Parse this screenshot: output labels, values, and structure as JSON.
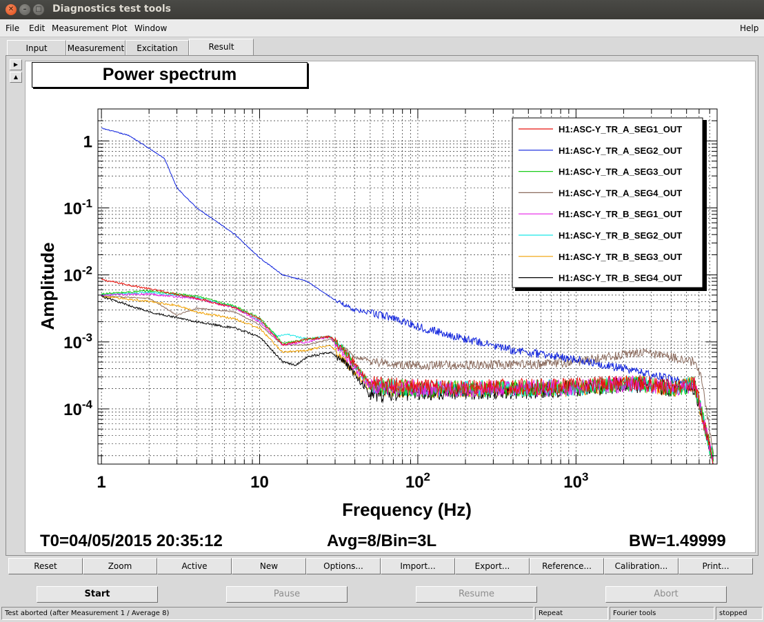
{
  "window": {
    "title": "Diagnostics test tools"
  },
  "menu": {
    "items": [
      {
        "label": "File"
      },
      {
        "label": "Edit"
      },
      {
        "label": "Measurement"
      },
      {
        "label": "Plot"
      },
      {
        "label": "Window"
      }
    ],
    "help": "Help"
  },
  "tabs": [
    {
      "label": "Input"
    },
    {
      "label": "Measurement"
    },
    {
      "label": "Excitation"
    },
    {
      "label": "Result",
      "active": true
    }
  ],
  "plot": {
    "title": "Power spectrum",
    "t0": "T0=04/05/2015 20:35:12",
    "avg": "Avg=8/Bin=3L",
    "bw": "BW=1.49999"
  },
  "chart_data": {
    "type": "line",
    "title": "Power spectrum",
    "xlabel": "Frequency (Hz)",
    "ylabel": "Amplitude",
    "xscale": "log",
    "yscale": "log",
    "xlim": [
      0.95,
      7800
    ],
    "ylim": [
      1.5e-05,
      3
    ],
    "grid": true,
    "legend_position": "top-right",
    "x_ticks": [
      {
        "value": 1,
        "base": "1",
        "exp": ""
      },
      {
        "value": 10,
        "base": "10",
        "exp": ""
      },
      {
        "value": 100,
        "base": "10",
        "exp": "2"
      },
      {
        "value": 1000,
        "base": "10",
        "exp": "3"
      }
    ],
    "y_ticks": [
      {
        "value": 1,
        "base": "1",
        "exp": ""
      },
      {
        "value": 0.1,
        "base": "10",
        "exp": "-1"
      },
      {
        "value": 0.01,
        "base": "10",
        "exp": "-2"
      },
      {
        "value": 0.001,
        "base": "10",
        "exp": "-3"
      },
      {
        "value": 0.0001,
        "base": "10",
        "exp": "-4"
      }
    ],
    "series": [
      {
        "name": "H1:ASC-Y_TR_A_SEG1_OUT",
        "color": "#e8120c",
        "noise": 0.25,
        "points": [
          [
            1,
            0.0085
          ],
          [
            2,
            0.0062
          ],
          [
            4,
            0.0045
          ],
          [
            7,
            0.0032
          ],
          [
            10,
            0.0022
          ],
          [
            14,
            0.0009
          ],
          [
            20,
            0.0011
          ],
          [
            28,
            0.0012
          ],
          [
            35,
            0.0007
          ],
          [
            50,
            0.00024
          ],
          [
            100,
            0.00021
          ],
          [
            300,
            0.00021
          ],
          [
            1000,
            0.00022
          ],
          [
            2500,
            0.00025
          ],
          [
            4000,
            0.00021
          ],
          [
            5600,
            0.00024
          ],
          [
            6200,
            9e-05
          ],
          [
            7400,
            1.6e-05
          ]
        ]
      },
      {
        "name": "H1:ASC-Y_TR_A_SEG2_OUT",
        "color": "#0a1edc",
        "noise": 0.12,
        "points": [
          [
            1,
            1.55
          ],
          [
            1.5,
            1.2
          ],
          [
            2.5,
            0.55
          ],
          [
            3,
            0.2
          ],
          [
            4,
            0.1
          ],
          [
            7,
            0.04
          ],
          [
            10,
            0.018
          ],
          [
            14,
            0.01
          ],
          [
            20,
            0.008
          ],
          [
            30,
            0.0042
          ],
          [
            40,
            0.003
          ],
          [
            70,
            0.0023
          ],
          [
            100,
            0.0017
          ],
          [
            200,
            0.0011
          ],
          [
            400,
            0.00075
          ],
          [
            1000,
            0.00055
          ],
          [
            2000,
            0.0004
          ],
          [
            4000,
            0.00028
          ],
          [
            5600,
            0.00024
          ],
          [
            6200,
            9e-05
          ],
          [
            7400,
            1.6e-05
          ]
        ]
      },
      {
        "name": "H1:ASC-Y_TR_A_SEG3_OUT",
        "color": "#18cc18",
        "noise": 0.25,
        "points": [
          [
            1,
            0.0052
          ],
          [
            2,
            0.0058
          ],
          [
            4,
            0.0048
          ],
          [
            7,
            0.0034
          ],
          [
            10,
            0.0023
          ],
          [
            14,
            0.00095
          ],
          [
            20,
            0.0011
          ],
          [
            28,
            0.0012
          ],
          [
            35,
            0.0007
          ],
          [
            50,
            0.00022
          ],
          [
            100,
            0.0002
          ],
          [
            300,
            0.0002
          ],
          [
            1000,
            0.00021
          ],
          [
            2500,
            0.00024
          ],
          [
            4000,
            0.0002
          ],
          [
            5600,
            0.00023
          ],
          [
            6200,
            9e-05
          ],
          [
            7400,
            1.6e-05
          ]
        ]
      },
      {
        "name": "H1:ASC-Y_TR_A_SEG4_OUT",
        "color": "#8a6a5c",
        "noise": 0.14,
        "points": [
          [
            1,
            0.0048
          ],
          [
            2,
            0.0045
          ],
          [
            3,
            0.0025
          ],
          [
            4,
            0.0032
          ],
          [
            7,
            0.0028
          ],
          [
            10,
            0.0018
          ],
          [
            14,
            0.0009
          ],
          [
            20,
            0.0009
          ],
          [
            28,
            0.0011
          ],
          [
            40,
            0.0006
          ],
          [
            70,
            0.00045
          ],
          [
            100,
            0.00045
          ],
          [
            200,
            0.00045
          ],
          [
            500,
            0.00046
          ],
          [
            1000,
            0.0005
          ],
          [
            2500,
            0.0007
          ],
          [
            4000,
            0.0006
          ],
          [
            5600,
            0.0005
          ],
          [
            6200,
            0.0003
          ],
          [
            7400,
            2e-05
          ]
        ]
      },
      {
        "name": "H1:ASC-Y_TR_B_SEG1_OUT",
        "color": "#e61ee6",
        "noise": 0.25,
        "points": [
          [
            1,
            0.005
          ],
          [
            2,
            0.0052
          ],
          [
            4,
            0.0044
          ],
          [
            7,
            0.0032
          ],
          [
            10,
            0.002
          ],
          [
            14,
            0.0009
          ],
          [
            20,
            0.001
          ],
          [
            28,
            0.0012
          ],
          [
            35,
            0.0006
          ],
          [
            50,
            0.00022
          ],
          [
            100,
            0.0002
          ],
          [
            300,
            0.0002
          ],
          [
            1000,
            0.00021
          ],
          [
            2500,
            0.00024
          ],
          [
            4000,
            0.0002
          ],
          [
            5600,
            0.00023
          ],
          [
            6200,
            9e-05
          ],
          [
            7400,
            1.6e-05
          ]
        ]
      },
      {
        "name": "H1:ASC-Y_TR_B_SEG2_OUT",
        "color": "#18e6e6",
        "noise": 0.25,
        "points": [
          [
            1,
            0.005
          ],
          [
            2,
            0.0055
          ],
          [
            4,
            0.0046
          ],
          [
            7,
            0.0033
          ],
          [
            10,
            0.0021
          ],
          [
            13,
            0.0012
          ],
          [
            15,
            0.0013
          ],
          [
            20,
            0.0011
          ],
          [
            28,
            0.0012
          ],
          [
            35,
            0.0007
          ],
          [
            50,
            0.00022
          ],
          [
            100,
            0.0002
          ],
          [
            300,
            0.0002
          ],
          [
            1000,
            0.00021
          ],
          [
            2500,
            0.00024
          ],
          [
            4000,
            0.0002
          ],
          [
            5600,
            0.00023
          ],
          [
            6200,
            9e-05
          ],
          [
            7400,
            1.6e-05
          ]
        ]
      },
      {
        "name": "H1:ASC-Y_TR_B_SEG3_OUT",
        "color": "#f0a000",
        "noise": 0.25,
        "points": [
          [
            1,
            0.0048
          ],
          [
            2,
            0.004
          ],
          [
            3,
            0.0035
          ],
          [
            4,
            0.0028
          ],
          [
            7,
            0.0022
          ],
          [
            10,
            0.0016
          ],
          [
            14,
            0.0007
          ],
          [
            20,
            0.00075
          ],
          [
            28,
            0.0009
          ],
          [
            35,
            0.0005
          ],
          [
            50,
            0.0002
          ],
          [
            100,
            0.00019
          ],
          [
            300,
            0.0002
          ],
          [
            1000,
            0.0002
          ],
          [
            2500,
            0.00024
          ],
          [
            4000,
            0.0002
          ],
          [
            5600,
            0.00023
          ],
          [
            6200,
            9e-05
          ],
          [
            7400,
            1.6e-05
          ]
        ]
      },
      {
        "name": "H1:ASC-Y_TR_B_SEG4_OUT",
        "color": "#000000",
        "noise": 0.25,
        "points": [
          [
            1,
            0.0048
          ],
          [
            2,
            0.0028
          ],
          [
            4,
            0.002
          ],
          [
            7,
            0.0016
          ],
          [
            10,
            0.0012
          ],
          [
            14,
            0.0005
          ],
          [
            17,
            0.00045
          ],
          [
            20,
            0.0006
          ],
          [
            28,
            0.0007
          ],
          [
            35,
            0.0005
          ],
          [
            50,
            0.00016
          ],
          [
            100,
            0.00018
          ],
          [
            300,
            0.00018
          ],
          [
            1000,
            0.0002
          ],
          [
            2500,
            0.00023
          ],
          [
            4000,
            0.0002
          ],
          [
            5600,
            0.00022
          ],
          [
            6200,
            9e-05
          ],
          [
            7400,
            1.6e-05
          ]
        ]
      }
    ]
  },
  "buttons": [
    {
      "label": "Reset"
    },
    {
      "label": "Zoom"
    },
    {
      "label": "Active"
    },
    {
      "label": "New"
    },
    {
      "label": "Options..."
    },
    {
      "label": "Import..."
    },
    {
      "label": "Export..."
    },
    {
      "label": "Reference..."
    },
    {
      "label": "Calibration..."
    },
    {
      "label": "Print..."
    }
  ],
  "controls": [
    {
      "label": "Start",
      "enabled": true
    },
    {
      "label": "Pause",
      "enabled": false
    },
    {
      "label": "Resume",
      "enabled": false
    },
    {
      "label": "Abort",
      "enabled": false
    }
  ],
  "status": {
    "message": "Test aborted (after Measurement 1 / Average 8)",
    "mode": "Repeat",
    "tool": "Fourier tools",
    "state": "stopped"
  }
}
